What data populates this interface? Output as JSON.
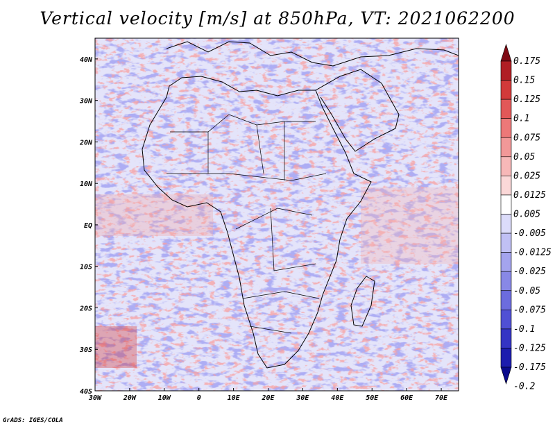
{
  "title": "Vertical velocity [m/s] at 850hPa, VT: 2021062200",
  "footer": "GrADS: IGES/COLA",
  "map": {
    "lon_range": [
      -30,
      75
    ],
    "lat_range": [
      -40,
      45
    ],
    "lon_ticks": [
      {
        "lon": -30,
        "label": "30W"
      },
      {
        "lon": -20,
        "label": "20W"
      },
      {
        "lon": -10,
        "label": "10W"
      },
      {
        "lon": 0,
        "label": "0"
      },
      {
        "lon": 10,
        "label": "10E"
      },
      {
        "lon": 20,
        "label": "20E"
      },
      {
        "lon": 30,
        "label": "30E"
      },
      {
        "lon": 40,
        "label": "40E"
      },
      {
        "lon": 50,
        "label": "50E"
      },
      {
        "lon": 60,
        "label": "60E"
      },
      {
        "lon": 70,
        "label": "70E"
      }
    ],
    "lat_ticks": [
      {
        "lat": 40,
        "label": "40N"
      },
      {
        "lat": 30,
        "label": "30N"
      },
      {
        "lat": 20,
        "label": "20N"
      },
      {
        "lat": 10,
        "label": "10N"
      },
      {
        "lat": 0,
        "label": "EQ"
      },
      {
        "lat": -10,
        "label": "10S"
      },
      {
        "lat": -20,
        "label": "20S"
      },
      {
        "lat": -30,
        "label": "30S"
      },
      {
        "lat": -40,
        "label": "40S"
      }
    ]
  },
  "colorbar": {
    "colors": [
      "#7f0a14",
      "#b01e24",
      "#d23a3a",
      "#e25858",
      "#ec7878",
      "#f29898",
      "#f7b8b8",
      "#fbd8d8",
      "#ffffff",
      "#dcdcfa",
      "#c0c0f4",
      "#a4a4ee",
      "#8888e6",
      "#6c6cde",
      "#5050d4",
      "#3434c4",
      "#1c1cae",
      "#0a0a8c"
    ],
    "labels": [
      "0.175",
      "0.15",
      "0.125",
      "0.1",
      "0.075",
      "0.05",
      "0.025",
      "0.0125",
      "0.005",
      "-0.005",
      "-0.0125",
      "-0.025",
      "-0.05",
      "-0.075",
      "-0.1",
      "-0.125",
      "-0.175",
      "-0.2"
    ]
  }
}
